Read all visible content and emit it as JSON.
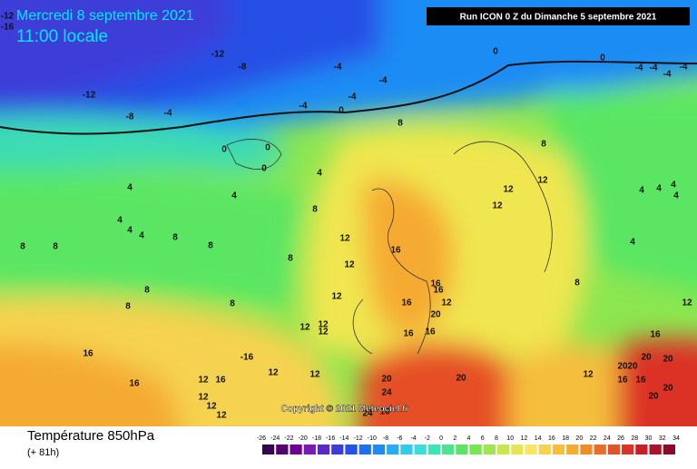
{
  "header": {
    "date": "Mercredi 8 septembre 2021",
    "time": "11:00 locale",
    "run": "Run ICON 0 Z du Dimanche 5 septembre 2021"
  },
  "copyright": "Copyright © 2021 Meteociel.fr",
  "footer": {
    "title": "Température 850hPa",
    "lead": "(+ 81h)"
  },
  "colorbar": {
    "ticks": [
      -26,
      -24,
      -22,
      -20,
      -18,
      -16,
      -14,
      -12,
      -10,
      -8,
      -6,
      -4,
      -2,
      0,
      2,
      4,
      6,
      8,
      10,
      12,
      14,
      16,
      18,
      20,
      22,
      24,
      26,
      28,
      30,
      32,
      34
    ],
    "colors": [
      "#3a0050",
      "#55006e",
      "#6e0090",
      "#7a1ab4",
      "#5a28c8",
      "#3c3cd8",
      "#2850e6",
      "#1e6ef0",
      "#1e8cf5",
      "#28aaf5",
      "#32c8f0",
      "#3cdcdc",
      "#3ce6b4",
      "#46e68c",
      "#5ae664",
      "#78e650",
      "#a0e650",
      "#c8e650",
      "#e6e650",
      "#f5e664",
      "#f5d250",
      "#f5be3c",
      "#f5aa32",
      "#f08c28",
      "#eb6e28",
      "#e65028",
      "#dc3228",
      "#c81e28",
      "#aa1428",
      "#8c0a28"
    ]
  },
  "map_labels": [
    -12,
    -16,
    -12,
    -8,
    -4,
    -4,
    -4,
    -4,
    0,
    -12,
    -8,
    -4,
    0,
    0,
    -4,
    -4,
    -4,
    -4,
    8,
    0,
    0,
    0,
    4,
    4,
    4,
    8,
    4,
    4,
    4,
    8,
    8,
    8,
    8,
    8,
    12,
    16,
    12,
    8,
    8,
    8,
    12,
    16,
    16,
    16,
    12,
    20,
    16,
    16,
    12,
    12,
    12,
    16,
    16,
    12,
    16,
    -16,
    12,
    12,
    12,
    12,
    12,
    20,
    24,
    20,
    8,
    12,
    12,
    12,
    4,
    4,
    4,
    4,
    4,
    8,
    16,
    20,
    20,
    20,
    20,
    20,
    16,
    16,
    12,
    12,
    20,
    24,
    16
  ]
}
